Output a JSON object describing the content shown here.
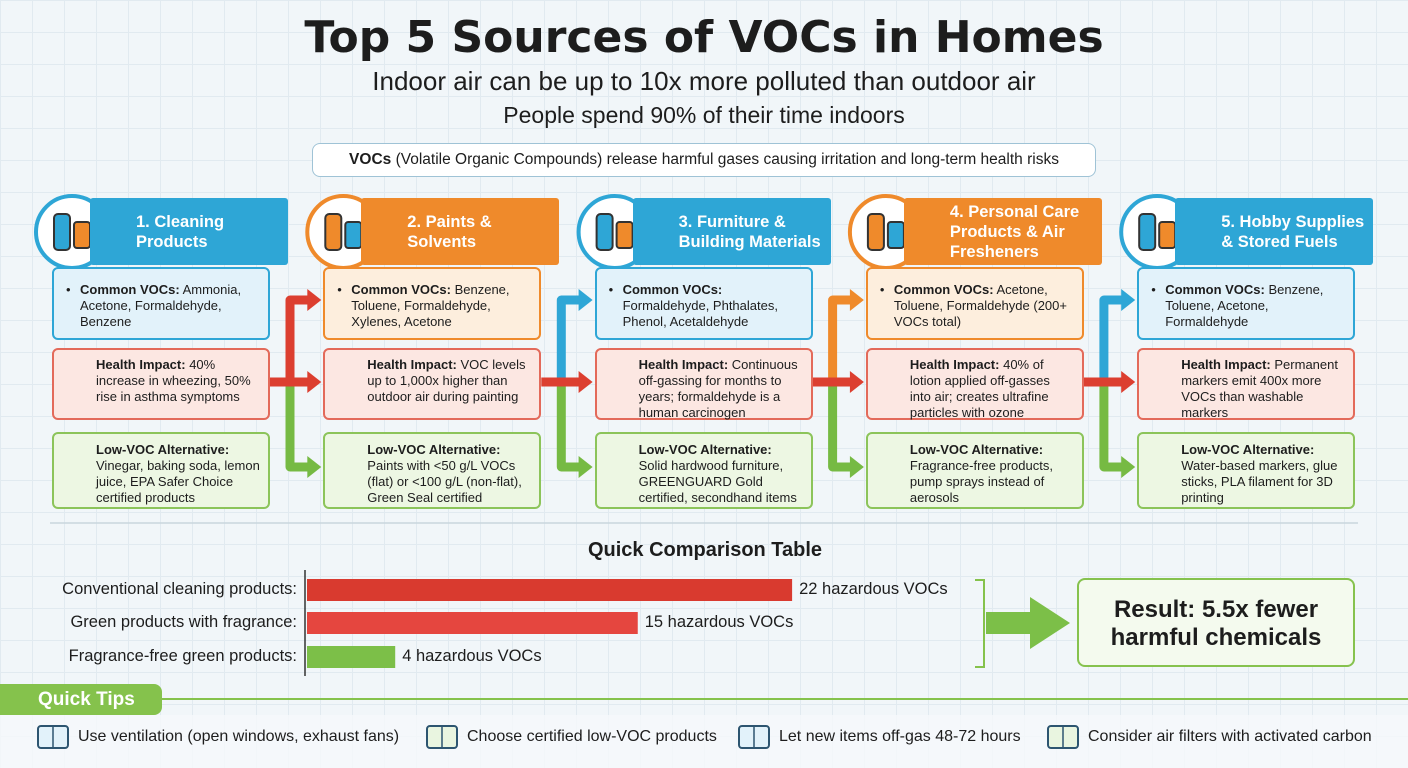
{
  "header": {
    "title": "Top 5 Sources of VOCs in Homes",
    "subtitle": "Indoor air can be up to 10x more polluted than outdoor air",
    "subtitle2": "People spend 90% of their time indoors"
  },
  "banner": {
    "term": "VOCs",
    "text": "(Volatile Organic Compounds) release harmful gases causing irritation and long-term health risks"
  },
  "sources": [
    {
      "title": "1. Cleaning Products",
      "common_label": "Common VOCs:",
      "common": "Ammonia, Acetone, Formaldehyde, Benzene",
      "impact_label": "Health Impact:",
      "impact": "40% increase in wheezing, 50% rise in asthma symptoms",
      "alt_label": "Low-VOC Alternative:",
      "alt": "Vinegar, baking soda, lemon juice, EPA Safer Choice certified products"
    },
    {
      "title": "2. Paints & Solvents",
      "common_label": "Common VOCs:",
      "common": "Benzene, Toluene, Formaldehyde, Xylenes, Acetone",
      "impact_label": "Health Impact:",
      "impact": "VOC levels up to 1,000x higher than outdoor air during painting",
      "alt_label": "Low-VOC Alternative:",
      "alt": "Paints with <50 g/L VOCs (flat) or <100 g/L (non-flat), Green Seal certified"
    },
    {
      "title": "3. Furniture & Building Materials",
      "common_label": "Common VOCs:",
      "common": "Formaldehyde, Phthalates, Phenol, Acetaldehyde",
      "impact_label": "Health Impact:",
      "impact": "Continuous off-gassing for months to years; formaldehyde is a human carcinogen",
      "alt_label": "Low-VOC Alternative:",
      "alt": "Solid hardwood furniture, GREENGUARD Gold certified, secondhand items"
    },
    {
      "title": "4. Personal Care Products & Air Fresheners",
      "common_label": "Common VOCs:",
      "common": "Acetone, Toluene, Formaldehyde (200+ VOCs total)",
      "impact_label": "Health Impact:",
      "impact": "40% of lotion applied off-gasses into air; creates ultrafine particles with ozone",
      "alt_label": "Low-VOC Alternative:",
      "alt": "Fragrance-free products, pump sprays instead of aerosols"
    },
    {
      "title": "5. Hobby Supplies & Stored Fuels",
      "common_label": "Common VOCs:",
      "common": "Benzene, Toluene, Acetone, Formaldehyde",
      "impact_label": "Health Impact:",
      "impact": "Permanent markers emit 400x more VOCs than washable markers",
      "alt_label": "Low-VOC Alternative:",
      "alt": "Water-based markers, glue sticks, PLA filament for 3D printing"
    }
  ],
  "chart_data": {
    "type": "bar",
    "orientation": "horizontal",
    "title": "Quick Comparison Table",
    "categories": [
      "Conventional cleaning products:",
      "Green products with fragrance:",
      "Fragrance-free green products:"
    ],
    "values": [
      22,
      15,
      4
    ],
    "value_labels": [
      "22 hazardous VOCs",
      "15 hazardous VOCs",
      "4 hazardous VOCs"
    ],
    "colors": [
      "#d93a2f",
      "#e5463f",
      "#7cbf48"
    ]
  },
  "result": "Result: 5.5x fewer harmful chemicals",
  "tips": {
    "title": "Quick Tips",
    "items": [
      "Use ventilation (open windows, exhaust fans)",
      "Choose certified low-VOC products",
      "Let new items off-gas 48-72 hours",
      "Consider air filters with activated carbon"
    ]
  }
}
